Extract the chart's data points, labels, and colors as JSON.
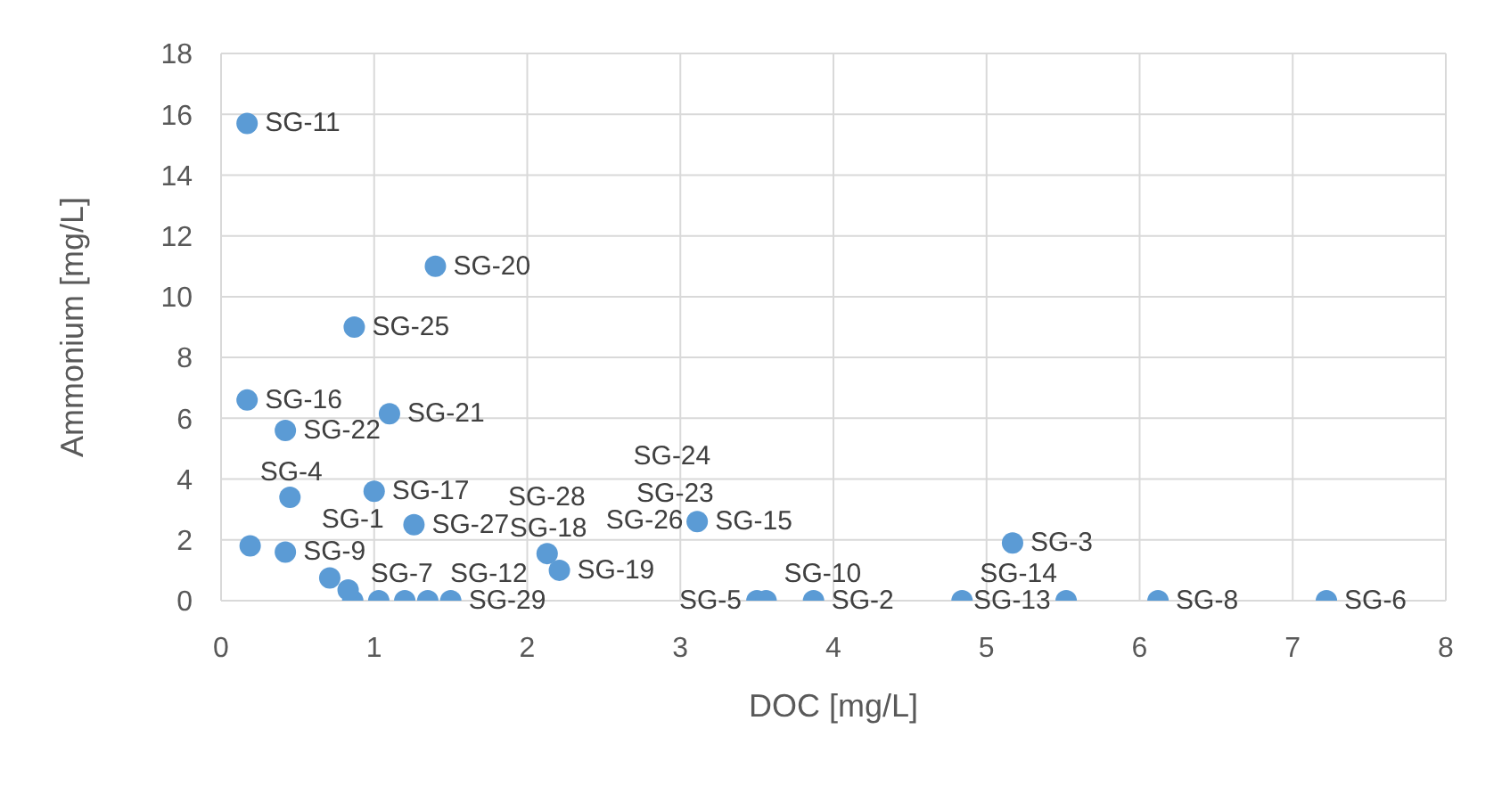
{
  "chart_data": {
    "type": "scatter",
    "xlabel": "DOC [mg/L]",
    "ylabel": "Ammonium [mg/L]",
    "x": [
      0.19,
      3.87,
      5.17,
      0.45,
      3.5,
      7.22,
      0.86,
      6.12,
      0.42,
      3.56,
      0.17,
      1.03,
      5.52,
      4.84,
      3.11,
      0.17,
      1.0,
      2.13,
      2.21,
      1.4,
      1.1,
      0.42,
      1.2,
      0.83,
      0.87,
      1.35,
      1.26,
      0.71,
      1.5
    ],
    "series": [
      {
        "color": "#5b9bd5",
        "values": [
          1.8,
          0,
          1.9,
          3.4,
          0,
          0,
          0,
          0,
          1.6,
          0,
          15.7,
          0,
          0,
          0,
          2.6,
          6.6,
          3.6,
          1.55,
          1.0,
          11.0,
          6.15,
          5.6,
          0,
          0.35,
          9.0,
          0,
          2.5,
          0.75,
          0
        ]
      }
    ],
    "value_labels": [
      "SG-1",
      "SG-2",
      "SG-3",
      "SG-4",
      "SG-5",
      "SG-6",
      "SG-7",
      "SG-8",
      "SG-9",
      "SG-10",
      "SG-11",
      "SG-12",
      "SG-13",
      "SG-14",
      "SG-15",
      "SG-16",
      "SG-17",
      "SG-18",
      "SG-19",
      "SG-20",
      "SG-21",
      "SG-22",
      "SG-23",
      "SG-24",
      "SG-25",
      "SG-26",
      "SG-27",
      "SG-28",
      "SG-29"
    ],
    "xlim": [
      0,
      8
    ],
    "xticks": [
      0,
      1,
      2,
      3,
      4,
      5,
      6,
      7,
      8
    ],
    "ylim": [
      0,
      18
    ],
    "yticks": [
      0,
      2,
      4,
      6,
      8,
      10,
      12,
      14,
      16,
      18
    ],
    "grid": true,
    "marker": "circle",
    "legend": false
  }
}
